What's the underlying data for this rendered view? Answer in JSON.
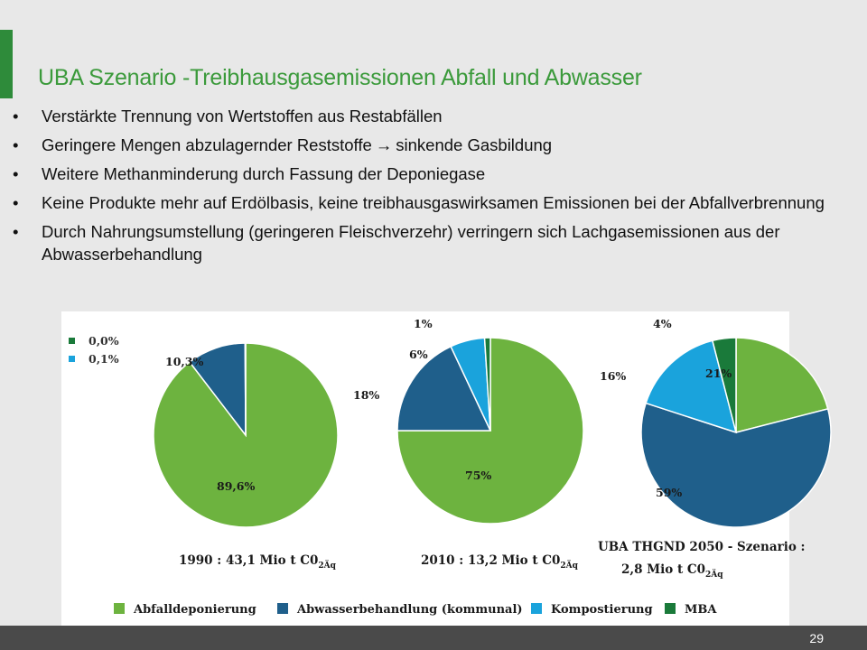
{
  "slide": {
    "title": "UBA Szenario -Treibhausgasemissionen Abfall und Abwasser",
    "bullets": [
      {
        "text": "Verstärkte Trennung von Wertstoffen aus Restabfällen"
      },
      {
        "text": "Geringere Mengen abzulagernder Reststoffe",
        "arrow": "→",
        "text_after": "sinkende Gasbildung"
      },
      {
        "text": "Weitere Methanminderung durch Fassung der Deponiegase"
      },
      {
        "text": "Keine Produkte mehr auf Erdölbasis, keine treibhausgaswirksamen Emissionen bei der Abfallverbrennung"
      },
      {
        "text": "Durch Nahrungsumstellung (geringeren Fleischverzehr) verringern sich Lachgasemissionen aus der Abwasserbehandlung"
      }
    ],
    "page_number": "29",
    "accent_color": "#2e8b3a"
  },
  "chart_data": {
    "type": "pie",
    "legend_position": "bottom",
    "categories": [
      "Abfalldeponierung",
      "Abwasserbehandlung (kommunal)",
      "Kompostierung",
      "MBA"
    ],
    "colors": [
      "#6db33f",
      "#1f5f8b",
      "#1aa3dc",
      "#1a7a3a"
    ],
    "charts": [
      {
        "caption": "1990 : 43,1 Mio t C0",
        "caption_sub": "2Äq",
        "values": [
          89.6,
          10.3,
          0.1,
          0.0
        ],
        "labels": [
          "89,6%",
          "10,3%",
          "0,1%",
          "0,0%"
        ]
      },
      {
        "caption": "2010 : 13,2 Mio t C0",
        "caption_sub": "2Äq",
        "values": [
          75,
          18,
          6,
          1
        ],
        "labels": [
          "75%",
          "18%",
          "6%",
          "1%"
        ]
      },
      {
        "caption_line1": "UBA THGND 2050 - Szenario :",
        "caption": "2,8 Mio t C0",
        "caption_sub": "2Äq",
        "values": [
          21,
          59,
          16,
          4
        ],
        "labels": [
          "21%",
          "59%",
          "16%",
          "4%"
        ]
      }
    ]
  }
}
